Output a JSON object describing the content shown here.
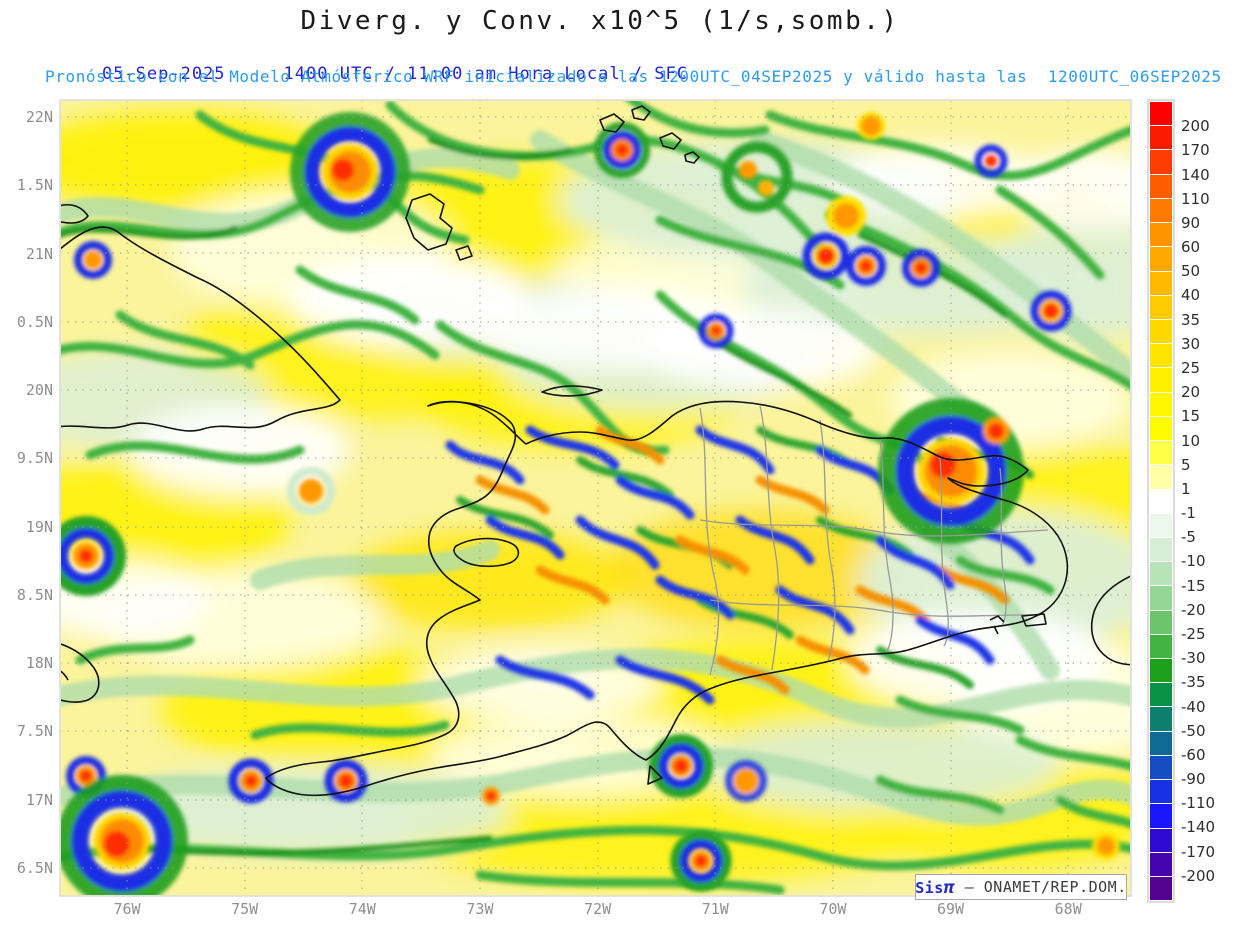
{
  "title": "Diverg. y Conv. x10^5 (1/s,somb.)",
  "header": {
    "date": "05-Sep-2025",
    "time": "1400 UTC / 11:00 am Hora Local / SFC",
    "model_info": "Pronóstico con el Modelo Atmósferico WRF inicializado a las 1200UTC_04SEP2025 y válido hasta las  1200UTC_06SEP2025"
  },
  "axes": {
    "lat_labels": [
      "22N",
      "1.5N",
      "21N",
      "0.5N",
      "20N",
      "9.5N",
      "19N",
      "8.5N",
      "18N",
      "7.5N",
      "17N",
      "6.5N"
    ],
    "lon_labels": [
      "76W",
      "75W",
      "74W",
      "73W",
      "72W",
      "71W",
      "70W",
      "69W",
      "68W"
    ]
  },
  "colorbar": {
    "labels": [
      "200",
      "170",
      "140",
      "110",
      "90",
      "60",
      "50",
      "40",
      "35",
      "30",
      "25",
      "20",
      "15",
      "10",
      "5",
      "1",
      "-1",
      "-5",
      "-10",
      "-15",
      "-20",
      "-25",
      "-30",
      "-35",
      "-40",
      "-50",
      "-60",
      "-90",
      "-110",
      "-140",
      "-170",
      "-200"
    ],
    "cell_colors": [
      "#fa0000",
      "#fb1c00",
      "#fc3c00",
      "#fd5c00",
      "#fe7a00",
      "#fe9400",
      "#ffa800",
      "#ffba00",
      "#ffca00",
      "#ffd800",
      "#ffe400",
      "#ffee00",
      "#fff600",
      "#fffc00",
      "#ffff48",
      "#ffffa8",
      "#ffffff",
      "#ecf8ec",
      "#d6eed6",
      "#b8e2b8",
      "#94d494",
      "#6cc46c",
      "#42b242",
      "#1ca01c",
      "#0c9148",
      "#0d7f70",
      "#106a94",
      "#144ec2",
      "#1732e6",
      "#1a18fa",
      "#2e0ad2",
      "#4405ae",
      "#540190"
    ]
  },
  "watermark": {
    "brand_prefix": "Sis",
    "brand_symbol": "π",
    "agency": "– ONAMET/REP.DOM."
  }
}
